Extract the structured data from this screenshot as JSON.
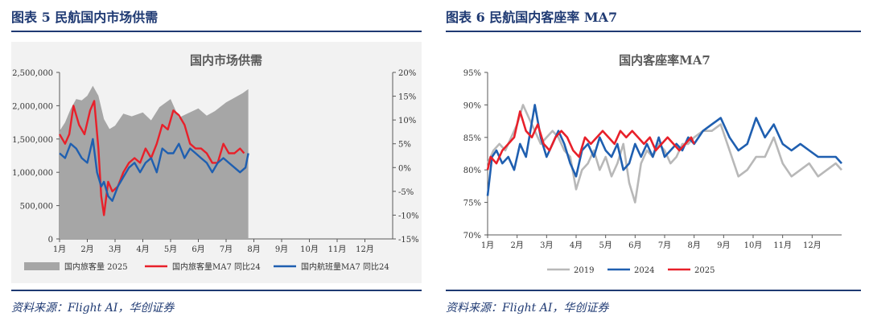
{
  "panels": [
    {
      "heading": "图表 5   民航国内市场供需",
      "source": "资料来源：Flight AI，华创证券"
    },
    {
      "heading": "图表 6   民航国内客座率 MA7",
      "source": "资料来源：Flight AI，华创证券"
    }
  ],
  "chart_data": [
    {
      "type": "area",
      "title": "国内市场供需",
      "x_labels": [
        "1月",
        "2月",
        "3月",
        "4月",
        "5月",
        "6月",
        "7月",
        "8月",
        "9月",
        "10月",
        "11月",
        "12月"
      ],
      "x_unit": "month (1.0 = Jan 1)",
      "ylim_left": [
        0,
        2500000
      ],
      "yticks_left": [
        "0",
        "500,000",
        "1,000,000",
        "1,500,000",
        "2,000,000",
        "2,500,000"
      ],
      "ylim_right": [
        -15,
        20
      ],
      "yticks_right": [
        "-15%",
        "-10%",
        "-5%",
        "0%",
        "5%",
        "10%",
        "15%",
        "20%"
      ],
      "legend_position": "bottom",
      "series": [
        {
          "name": "国内旅客量 2025",
          "axis": "left",
          "kind": "area",
          "color": "#a6a6a6",
          "x": [
            1.0,
            1.2,
            1.4,
            1.6,
            1.8,
            2.0,
            2.2,
            2.4,
            2.6,
            2.8,
            3.0,
            3.3,
            3.6,
            4.0,
            4.3,
            4.6,
            5.0,
            5.3,
            5.6,
            6.0,
            6.3,
            6.6,
            7.0,
            7.3,
            7.6,
            7.8
          ],
          "y": [
            1620000,
            1750000,
            1950000,
            2100000,
            2080000,
            2150000,
            2300000,
            2150000,
            1800000,
            1650000,
            1700000,
            1880000,
            1840000,
            1900000,
            1780000,
            1980000,
            2100000,
            1820000,
            1880000,
            1960000,
            1850000,
            1920000,
            2050000,
            2120000,
            2190000,
            2250000
          ]
        },
        {
          "name": "国内旅客量MA7 同比24",
          "axis": "right",
          "kind": "line",
          "color": "#e8202a",
          "x": [
            1.0,
            1.2,
            1.35,
            1.5,
            1.7,
            1.9,
            2.1,
            2.25,
            2.4,
            2.5,
            2.6,
            2.75,
            2.9,
            3.1,
            3.3,
            3.5,
            3.7,
            3.9,
            4.1,
            4.3,
            4.5,
            4.7,
            4.9,
            5.1,
            5.3,
            5.5,
            5.7,
            5.9,
            6.1,
            6.3,
            6.5,
            6.7,
            6.9,
            7.1,
            7.3,
            7.5,
            7.65
          ],
          "y": [
            7,
            5,
            7,
            13,
            9,
            7,
            12,
            14,
            4,
            -6,
            -10,
            -3,
            -5,
            -4,
            -1,
            1,
            2,
            1,
            4,
            2,
            5,
            9,
            8,
            12,
            11,
            9,
            5,
            4,
            4,
            3,
            1,
            1,
            5,
            3,
            3,
            4,
            3
          ]
        },
        {
          "name": "国内航班量MA7 同比24",
          "axis": "right",
          "kind": "line",
          "color": "#1f5fb0",
          "x": [
            1.0,
            1.2,
            1.4,
            1.6,
            1.8,
            2.0,
            2.2,
            2.35,
            2.5,
            2.6,
            2.75,
            2.9,
            3.1,
            3.3,
            3.5,
            3.7,
            3.9,
            4.1,
            4.3,
            4.5,
            4.7,
            4.9,
            5.1,
            5.3,
            5.5,
            5.7,
            5.9,
            6.1,
            6.3,
            6.5,
            6.7,
            6.9,
            7.1,
            7.3,
            7.5,
            7.7,
            7.8
          ],
          "y": [
            3,
            2,
            5,
            4,
            2,
            1,
            6,
            -1,
            -4,
            -3,
            -6,
            -7,
            -4,
            -2,
            0,
            1,
            -1,
            1,
            2,
            -1,
            4,
            3,
            3,
            5,
            2,
            4,
            3,
            2,
            1,
            -1,
            1,
            2,
            1,
            0,
            -1,
            0,
            3
          ]
        }
      ],
      "legend": [
        "国内旅客量 2025",
        "国内旅客量MA7 同比24",
        "国内航班量MA7 同比24"
      ]
    },
    {
      "type": "line",
      "title": "国内客座率MA7",
      "x_labels": [
        "1月",
        "2月",
        "3月",
        "4月",
        "5月",
        "6月",
        "7月",
        "8月",
        "9月",
        "10月",
        "11月",
        "12月"
      ],
      "x_unit": "month (1.0 = Jan 1)",
      "ylim": [
        70,
        95
      ],
      "yticks": [
        "70%",
        "75%",
        "80%",
        "85%",
        "90%",
        "95%"
      ],
      "legend_position": "bottom",
      "series": [
        {
          "name": "2019",
          "color": "#b8b8b8",
          "x": [
            1.0,
            1.2,
            1.4,
            1.6,
            1.8,
            2.0,
            2.2,
            2.4,
            2.6,
            2.8,
            3.0,
            3.2,
            3.4,
            3.6,
            3.8,
            4.0,
            4.2,
            4.4,
            4.6,
            4.8,
            5.0,
            5.2,
            5.4,
            5.6,
            5.8,
            6.0,
            6.2,
            6.4,
            6.6,
            6.8,
            7.0,
            7.2,
            7.4,
            7.6,
            7.8,
            8.0,
            8.3,
            8.6,
            8.9,
            9.2,
            9.5,
            9.8,
            10.1,
            10.4,
            10.7,
            11.0,
            11.3,
            11.6,
            11.9,
            12.2,
            12.5,
            12.8,
            13.0
          ],
          "y": [
            81,
            83,
            84,
            83,
            85,
            87,
            90,
            88,
            86,
            84,
            85,
            86,
            85,
            83,
            82,
            77,
            80,
            81,
            83,
            80,
            82,
            79,
            81,
            84,
            78,
            75,
            81,
            83,
            82,
            84,
            83,
            81,
            82,
            84,
            84,
            85,
            86,
            86,
            87,
            83,
            79,
            80,
            82,
            82,
            85,
            81,
            79,
            80,
            81,
            79,
            80,
            81,
            80
          ]
        },
        {
          "name": "2024",
          "color": "#1f5fb0",
          "x": [
            1.0,
            1.15,
            1.3,
            1.5,
            1.7,
            1.9,
            2.1,
            2.3,
            2.45,
            2.6,
            2.8,
            3.0,
            3.2,
            3.4,
            3.6,
            3.8,
            4.0,
            4.2,
            4.4,
            4.6,
            4.8,
            5.0,
            5.2,
            5.4,
            5.6,
            5.8,
            6.0,
            6.2,
            6.4,
            6.6,
            6.8,
            7.0,
            7.2,
            7.4,
            7.6,
            7.8,
            8.0,
            8.3,
            8.6,
            8.9,
            9.2,
            9.5,
            9.8,
            10.1,
            10.4,
            10.7,
            11.0,
            11.3,
            11.6,
            11.9,
            12.2,
            12.5,
            12.8,
            13.0
          ],
          "y": [
            76,
            82,
            83,
            81,
            82,
            80,
            84,
            82,
            86,
            90,
            85,
            82,
            84,
            86,
            84,
            81,
            79,
            83,
            84,
            82,
            85,
            83,
            82,
            84,
            80,
            81,
            84,
            82,
            84,
            82,
            85,
            82,
            83,
            84,
            83,
            85,
            84,
            86,
            87,
            88,
            85,
            83,
            84,
            88,
            85,
            87,
            84,
            83,
            84,
            83,
            82,
            82,
            82,
            81
          ]
        },
        {
          "name": "2025",
          "color": "#e8202a",
          "x": [
            1.0,
            1.1,
            1.3,
            1.5,
            1.7,
            1.9,
            2.1,
            2.3,
            2.5,
            2.7,
            2.9,
            3.1,
            3.3,
            3.5,
            3.7,
            3.9,
            4.1,
            4.3,
            4.5,
            4.7,
            4.9,
            5.1,
            5.3,
            5.5,
            5.7,
            5.9,
            6.1,
            6.3,
            6.5,
            6.7,
            6.9,
            7.1,
            7.3,
            7.5,
            7.7,
            7.9,
            8.0
          ],
          "y": [
            80,
            82,
            81,
            83,
            84,
            85,
            89,
            86,
            85,
            87,
            84,
            83,
            85,
            86,
            85,
            83,
            82,
            85,
            84,
            85,
            86,
            85,
            84,
            86,
            85,
            86,
            85,
            84,
            85,
            83,
            84,
            85,
            84,
            83,
            84,
            85,
            84
          ]
        }
      ],
      "legend": [
        "2019",
        "2024",
        "2025"
      ]
    }
  ]
}
